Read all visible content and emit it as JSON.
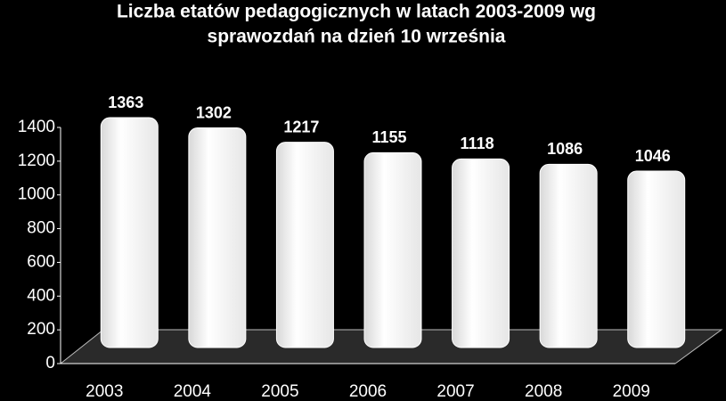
{
  "chart_data": {
    "type": "bar",
    "title": [
      "Liczba etatów pedagogicznych w latach 2003-2009 wg",
      "sprawozdań na dzień 10 września"
    ],
    "categories": [
      "2003",
      "2004",
      "2005",
      "2006",
      "2007",
      "2008",
      "2009"
    ],
    "values": [
      1363,
      1302,
      1217,
      1155,
      1118,
      1086,
      1046
    ],
    "color": "#ffffff",
    "ylim": [
      0,
      1400
    ],
    "yticks": [
      0,
      200,
      400,
      600,
      800,
      1000,
      1200,
      1400
    ]
  }
}
